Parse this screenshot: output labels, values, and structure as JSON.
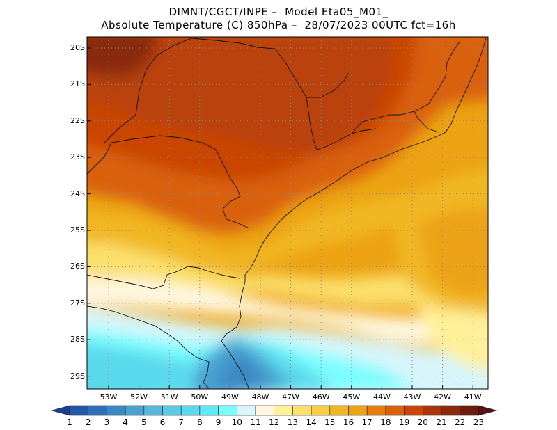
{
  "title": {
    "line1": "DIMNT/CGCT/INPE –  Model Eta05_M01_",
    "line2": "Absolute Temperature (C) 850hPa –  28/07/2023 00UTC fct=16h"
  },
  "lat_labels": [
    "20S",
    "21S",
    "22S",
    "23S",
    "24S",
    "25S",
    "26S",
    "27S",
    "28S",
    "29S"
  ],
  "lon_labels": [
    "53W",
    "52W",
    "51W",
    "50W",
    "49W",
    "48W",
    "47W",
    "46W",
    "45W",
    "44W",
    "43W",
    "42W",
    "41W"
  ],
  "colorbar": {
    "labels": [
      "1",
      "2",
      "3",
      "4",
      "5",
      "6",
      "7",
      "8",
      "9",
      "10",
      "11",
      "12",
      "13",
      "14",
      "15",
      "16",
      "17",
      "18",
      "19",
      "20",
      "21",
      "22",
      "23"
    ],
    "colors": [
      "#1d3f92",
      "#2457a8",
      "#2f6fb8",
      "#3b87c4",
      "#4aa0cf",
      "#57b6d9",
      "#5cc9e2",
      "#5ad9ec",
      "#5eeaf6",
      "#7bfdff",
      "#d7f5fb",
      "#fff7e0",
      "#fff09a",
      "#fbe06c",
      "#f6cd44",
      "#f1b722",
      "#eca212",
      "#e57c0e",
      "#d9600b",
      "#c94406",
      "#a8340a",
      "#8a2a0f",
      "#6b1d0e",
      "#5a0f14"
    ]
  }
}
